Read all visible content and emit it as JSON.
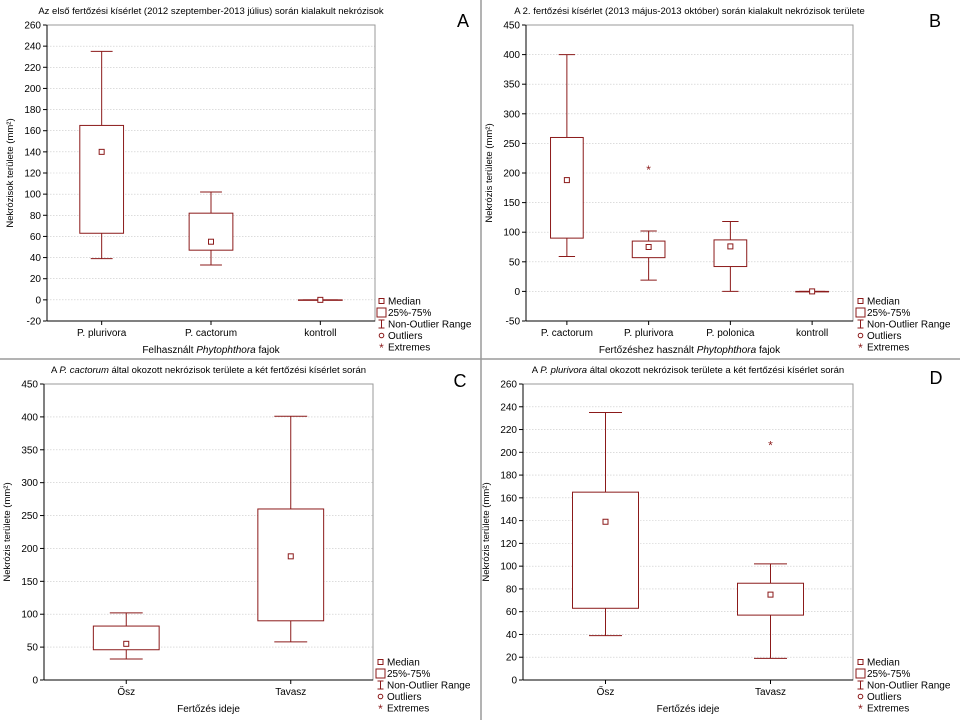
{
  "colors": {
    "box": "#8b1a1a",
    "axis": "#000000",
    "grid": "#c8c8c8",
    "frame": "#999999",
    "divider": "#9a9a9a"
  },
  "legend": {
    "median": "Median",
    "iqr": "25%-75%",
    "range": "Non-Outlier Range",
    "outliers": "Outliers",
    "extremes": "Extremes"
  },
  "chart_data": [
    {
      "type": "box",
      "panel_letter": "A",
      "title": "Az első fertőzési kísérlet (2012 szeptember-2013 július) során kialakult nekrózisok",
      "title_parts": [
        {
          "t": "Az első fertőzési kísérlet (2012 szeptember-2013 július) során kialakult nekrózisok",
          "i": false
        }
      ],
      "ylabel": "Nekrózisok területe (mm²)",
      "xlabel_parts": [
        {
          "t": "Felhasznált ",
          "i": false
        },
        {
          "t": "Phytophthora",
          "i": true
        },
        {
          "t": " fajok",
          "i": false
        }
      ],
      "ylim": [
        -20,
        260
      ],
      "yticks": [
        -20,
        0,
        20,
        40,
        60,
        80,
        100,
        120,
        140,
        160,
        180,
        200,
        220,
        240,
        260
      ],
      "ytick_labels": [
        "-20",
        "0",
        "20",
        "40",
        "60",
        "80",
        "100",
        "120",
        "140",
        "160",
        "180",
        "200",
        "220",
        "240",
        "260"
      ],
      "categories": [
        "P. plurivora",
        "P. cactorum",
        "kontroll"
      ],
      "boxes": [
        {
          "median": 140,
          "q1": 63,
          "q3": 165,
          "min": 39,
          "max": 235,
          "extremes": []
        },
        {
          "median": 55,
          "q1": 47,
          "q3": 82,
          "min": 33,
          "max": 102,
          "extremes": []
        },
        {
          "median": 0,
          "q1": 0,
          "q3": 0,
          "min": 0,
          "max": 0,
          "extremes": []
        }
      ]
    },
    {
      "type": "box",
      "panel_letter": "B",
      "title": "A 2. fertőzési kísérlet (2013 május-2013 október) során kialakult nekrózisok területe",
      "title_parts": [
        {
          "t": "A 2. fertőzési kísérlet (2013 május-2013 október) során kialakult nekrózisok területe",
          "i": false
        }
      ],
      "ylabel": "Nekrózis területe (mm²)",
      "xlabel_parts": [
        {
          "t": "Fertőzéshez használt ",
          "i": false
        },
        {
          "t": "Phytophthora",
          "i": true
        },
        {
          "t": " fajok",
          "i": false
        }
      ],
      "ylim": [
        -50,
        450
      ],
      "yticks": [
        -50,
        0,
        50,
        100,
        150,
        200,
        250,
        300,
        350,
        400,
        450
      ],
      "ytick_labels": [
        "-50",
        "0",
        "50",
        "100",
        "150",
        "200",
        "250",
        "300",
        "350",
        "400",
        "450"
      ],
      "categories": [
        "P. cactorum",
        "P. plurivora",
        "P. polonica",
        "kontroll"
      ],
      "boxes": [
        {
          "median": 188,
          "q1": 90,
          "q3": 260,
          "min": 59,
          "max": 400,
          "extremes": []
        },
        {
          "median": 75,
          "q1": 57,
          "q3": 85,
          "min": 19,
          "max": 102,
          "extremes": [
            207
          ]
        },
        {
          "median": 76,
          "q1": 42,
          "q3": 87,
          "min": 0,
          "max": 118,
          "extremes": []
        },
        {
          "median": 0,
          "q1": 0,
          "q3": 0,
          "min": 0,
          "max": 0,
          "extremes": []
        }
      ]
    },
    {
      "type": "box",
      "panel_letter": "C",
      "title": "A P. cactorum által okozott nekrózisok területe a két fertőzési kísérlet során",
      "title_parts": [
        {
          "t": "A ",
          "i": false
        },
        {
          "t": "P. cactorum",
          "i": true
        },
        {
          "t": " által okozott nekrózisok területe a két fertőzési kísérlet során",
          "i": false
        }
      ],
      "ylabel": "Nekrózis területe (mm²)",
      "xlabel_parts": [
        {
          "t": "Fertőzés ideje",
          "i": false
        }
      ],
      "ylim": [
        0,
        450
      ],
      "yticks": [
        0,
        50,
        100,
        150,
        200,
        250,
        300,
        350,
        400,
        450
      ],
      "ytick_labels": [
        "0",
        "50",
        "100",
        "150",
        "200",
        "250",
        "300",
        "350",
        "400",
        "450"
      ],
      "categories": [
        "Ősz",
        "Tavasz"
      ],
      "boxes": [
        {
          "median": 55,
          "q1": 46,
          "q3": 82,
          "min": 32,
          "max": 102,
          "extremes": []
        },
        {
          "median": 188,
          "q1": 90,
          "q3": 260,
          "min": 58,
          "max": 401,
          "extremes": []
        }
      ]
    },
    {
      "type": "box",
      "panel_letter": "D",
      "title": "A P. plurivora által okozott nekrózisok területe a két fertőzési kísérlet során",
      "title_parts": [
        {
          "t": "A ",
          "i": false
        },
        {
          "t": "P. plurivora",
          "i": true
        },
        {
          "t": " által okozott nekrózisok területe a két fertőzési kísérlet során",
          "i": false
        }
      ],
      "ylabel": "Nekrózis területe (mm²)",
      "xlabel_parts": [
        {
          "t": "Fertőzés ideje",
          "i": false
        }
      ],
      "ylim": [
        0,
        260
      ],
      "yticks": [
        0,
        20,
        40,
        60,
        80,
        100,
        120,
        140,
        160,
        180,
        200,
        220,
        240,
        260
      ],
      "ytick_labels": [
        "0",
        "20",
        "40",
        "60",
        "80",
        "100",
        "120",
        "140",
        "160",
        "180",
        "200",
        "220",
        "240",
        "260"
      ],
      "categories": [
        "Ősz",
        "Tavasz"
      ],
      "boxes": [
        {
          "median": 139,
          "q1": 63,
          "q3": 165,
          "min": 39,
          "max": 235,
          "extremes": []
        },
        {
          "median": 75,
          "q1": 57,
          "q3": 85,
          "min": 19,
          "max": 102,
          "extremes": [
            207
          ]
        }
      ]
    }
  ]
}
